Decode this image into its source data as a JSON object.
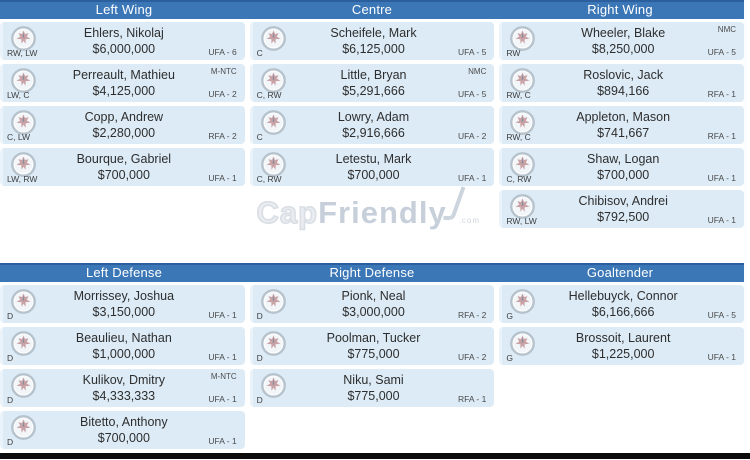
{
  "watermark": {
    "part1": "Cap",
    "part2": "Friendly",
    "suffix": ".com"
  },
  "colors": {
    "header_bg": "#3b77b7",
    "header_border_top": "#2c5f9d",
    "header_text": "#ffffff",
    "card_bg": "#dcebf6",
    "card_left_edge": "#ebf3fa",
    "text_dark": "#2e2e2e",
    "text_muted": "#4a4a4a",
    "watermark_grey": "#c7d0da",
    "bottom_bar": "#0b0b0b"
  },
  "team_logo": "winnipeg-jets-roundel",
  "sections": [
    {
      "columns": [
        {
          "header": "Left Wing",
          "players": [
            {
              "name": "Ehlers, Nikolaj",
              "salary": "$6,000,000",
              "positions": "RW, LW",
              "clause": "",
              "expiry": "UFA - 6"
            },
            {
              "name": "Perreault, Mathieu",
              "salary": "$4,125,000",
              "positions": "LW, C",
              "clause": "M-NTC",
              "expiry": "UFA - 2"
            },
            {
              "name": "Copp, Andrew",
              "salary": "$2,280,000",
              "positions": "C, LW",
              "clause": "",
              "expiry": "RFA - 2"
            },
            {
              "name": "Bourque, Gabriel",
              "salary": "$700,000",
              "positions": "LW, RW",
              "clause": "",
              "expiry": "UFA - 1"
            }
          ]
        },
        {
          "header": "Centre",
          "players": [
            {
              "name": "Scheifele, Mark",
              "salary": "$6,125,000",
              "positions": "C",
              "clause": "",
              "expiry": "UFA - 5"
            },
            {
              "name": "Little, Bryan",
              "salary": "$5,291,666",
              "positions": "C, RW",
              "clause": "NMC",
              "expiry": "UFA - 5"
            },
            {
              "name": "Lowry, Adam",
              "salary": "$2,916,666",
              "positions": "C",
              "clause": "",
              "expiry": "UFA - 2"
            },
            {
              "name": "Letestu, Mark",
              "salary": "$700,000",
              "positions": "C, RW",
              "clause": "",
              "expiry": "UFA - 1"
            }
          ]
        },
        {
          "header": "Right Wing",
          "players": [
            {
              "name": "Wheeler, Blake",
              "salary": "$8,250,000",
              "positions": "RW",
              "clause": "NMC",
              "expiry": "UFA - 5"
            },
            {
              "name": "Roslovic, Jack",
              "salary": "$894,166",
              "positions": "RW, C",
              "clause": "",
              "expiry": "RFA - 1"
            },
            {
              "name": "Appleton, Mason",
              "salary": "$741,667",
              "positions": "RW, C",
              "clause": "",
              "expiry": "RFA - 1"
            },
            {
              "name": "Shaw, Logan",
              "salary": "$700,000",
              "positions": "C, RW",
              "clause": "",
              "expiry": "UFA - 1"
            },
            {
              "name": "Chibisov, Andrei",
              "salary": "$792,500",
              "positions": "RW, LW",
              "clause": "",
              "expiry": "UFA - 1"
            }
          ]
        }
      ]
    },
    {
      "columns": [
        {
          "header": "Left Defense",
          "players": [
            {
              "name": "Morrissey, Joshua",
              "salary": "$3,150,000",
              "positions": "D",
              "clause": "",
              "expiry": "UFA - 1"
            },
            {
              "name": "Beaulieu, Nathan",
              "salary": "$1,000,000",
              "positions": "D",
              "clause": "",
              "expiry": "UFA - 1"
            },
            {
              "name": "Kulikov, Dmitry",
              "salary": "$4,333,333",
              "positions": "D",
              "clause": "M-NTC",
              "expiry": "UFA - 1"
            },
            {
              "name": "Bitetto, Anthony",
              "salary": "$700,000",
              "positions": "D",
              "clause": "",
              "expiry": "UFA - 1"
            }
          ]
        },
        {
          "header": "Right Defense",
          "players": [
            {
              "name": "Pionk, Neal",
              "salary": "$3,000,000",
              "positions": "D",
              "clause": "",
              "expiry": "RFA - 2"
            },
            {
              "name": "Poolman, Tucker",
              "salary": "$775,000",
              "positions": "D",
              "clause": "",
              "expiry": "UFA - 2"
            },
            {
              "name": "Niku, Sami",
              "salary": "$775,000",
              "positions": "D",
              "clause": "",
              "expiry": "RFA - 1"
            }
          ]
        },
        {
          "header": "Goaltender",
          "players": [
            {
              "name": "Hellebuyck, Connor",
              "salary": "$6,166,666",
              "positions": "G",
              "clause": "",
              "expiry": "UFA - 5"
            },
            {
              "name": "Brossoit, Laurent",
              "salary": "$1,225,000",
              "positions": "G",
              "clause": "",
              "expiry": "UFA - 1"
            }
          ]
        }
      ]
    }
  ]
}
